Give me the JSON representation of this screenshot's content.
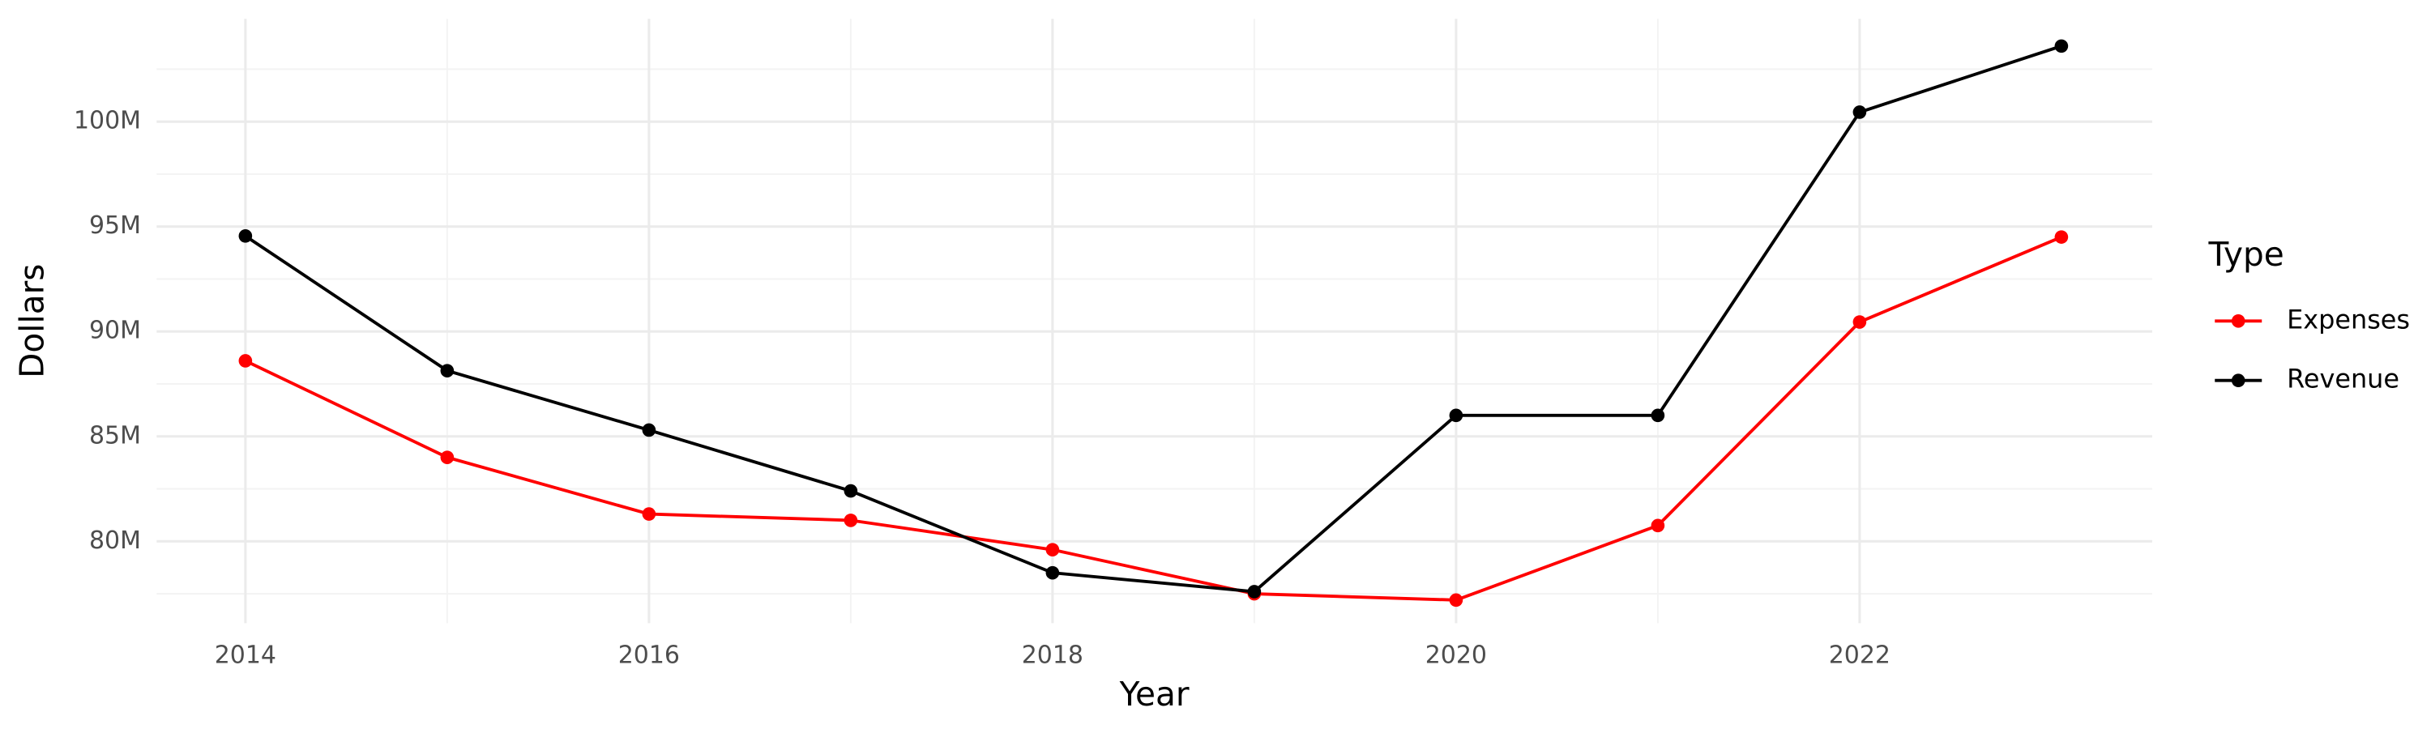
{
  "chart_data": {
    "type": "line",
    "x_label": "Year",
    "y_label": "Dollars",
    "x": [
      2014,
      2015,
      2016,
      2017,
      2018,
      2019,
      2020,
      2021,
      2022,
      2023
    ],
    "series": [
      {
        "name": "Expenses",
        "color": "#ff0000",
        "values": [
          88600000,
          84000000,
          81300000,
          81000000,
          79600000,
          77500000,
          77200000,
          80750000,
          90450000,
          94500000
        ]
      },
      {
        "name": "Revenue",
        "color": "#000000",
        "values": [
          94550000,
          88130000,
          85300000,
          82400000,
          78500000,
          77600000,
          86000000,
          86000000,
          100450000,
          103600000
        ]
      }
    ],
    "xlim": [
      2013.56,
      2023.45
    ],
    "xticks": [
      2014,
      2016,
      2018,
      2020,
      2022
    ],
    "ylim": [
      76100000,
      104900000
    ],
    "yticks": [
      {
        "value": 80000000,
        "label": "80M"
      },
      {
        "value": 85000000,
        "label": "85M"
      },
      {
        "value": 90000000,
        "label": "90M"
      },
      {
        "value": 95000000,
        "label": "95M"
      },
      {
        "value": 100000000,
        "label": "100M"
      }
    ],
    "grid": true,
    "legend_title": "Type",
    "legend_position": "right"
  }
}
